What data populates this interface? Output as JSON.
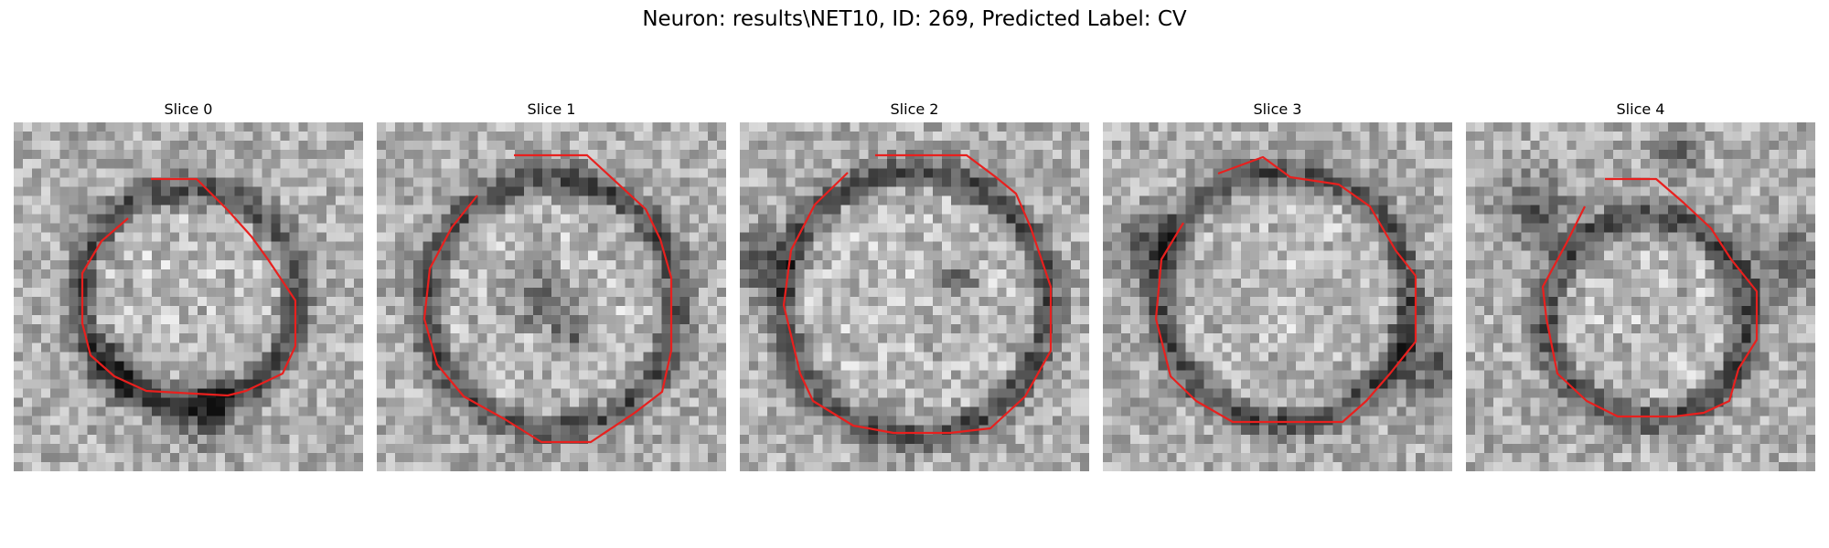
{
  "figure": {
    "title": "Neuron: results\\NET10, ID: 269, Predicted Label: CV"
  },
  "slices": [
    {
      "title": "Slice 0",
      "contour_color": "#e8201e"
    },
    {
      "title": "Slice 1",
      "contour_color": "#e8201e"
    },
    {
      "title": "Slice 2",
      "contour_color": "#e8201e"
    },
    {
      "title": "Slice 3",
      "contour_color": "#e8201e"
    },
    {
      "title": "Slice 4",
      "contour_color": "#e8201e"
    }
  ]
}
